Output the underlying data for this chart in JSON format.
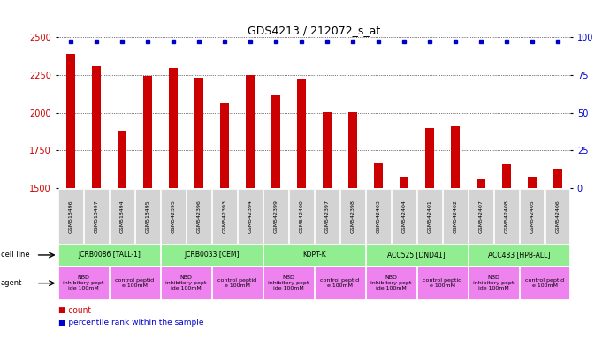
{
  "title": "GDS4213 / 212072_s_at",
  "samples": [
    "GSM518496",
    "GSM518497",
    "GSM518494",
    "GSM518495",
    "GSM542395",
    "GSM542396",
    "GSM542393",
    "GSM542394",
    "GSM542399",
    "GSM542400",
    "GSM542397",
    "GSM542398",
    "GSM542403",
    "GSM542404",
    "GSM542401",
    "GSM542402",
    "GSM542407",
    "GSM542408",
    "GSM542405",
    "GSM542406"
  ],
  "counts": [
    2390,
    2310,
    1880,
    2245,
    2295,
    2235,
    2065,
    2250,
    2115,
    2225,
    2005,
    2005,
    1665,
    1570,
    1900,
    1910,
    1560,
    1660,
    1575,
    1625
  ],
  "percentiles": [
    97,
    97,
    97,
    97,
    97,
    97,
    97,
    97,
    97,
    97,
    97,
    97,
    97,
    97,
    97,
    97,
    97,
    97,
    97,
    97
  ],
  "ylim_left": [
    1500,
    2500
  ],
  "ylim_right": [
    0,
    100
  ],
  "yticks_left": [
    1500,
    1750,
    2000,
    2250,
    2500
  ],
  "yticks_right": [
    0,
    25,
    50,
    75,
    100
  ],
  "bar_color": "#cc0000",
  "dot_color": "#0000cc",
  "cell_lines": [
    {
      "label": "JCRB0086 [TALL-1]",
      "start": 0,
      "end": 4,
      "color": "#90ee90"
    },
    {
      "label": "JCRB0033 [CEM]",
      "start": 4,
      "end": 8,
      "color": "#90ee90"
    },
    {
      "label": "KOPT-K",
      "start": 8,
      "end": 12,
      "color": "#90ee90"
    },
    {
      "label": "ACC525 [DND41]",
      "start": 12,
      "end": 16,
      "color": "#90ee90"
    },
    {
      "label": "ACC483 [HPB-ALL]",
      "start": 16,
      "end": 20,
      "color": "#90ee90"
    }
  ],
  "agents": [
    {
      "label": "NBD\ninhibitory pept\nide 100mM",
      "start": 0,
      "end": 2,
      "color": "#ee82ee"
    },
    {
      "label": "control peptid\ne 100mM",
      "start": 2,
      "end": 4,
      "color": "#ee82ee"
    },
    {
      "label": "NBD\ninhibitory pept\nide 100mM",
      "start": 4,
      "end": 6,
      "color": "#ee82ee"
    },
    {
      "label": "control peptid\ne 100mM",
      "start": 6,
      "end": 8,
      "color": "#ee82ee"
    },
    {
      "label": "NBD\ninhibitory pept\nide 100mM",
      "start": 8,
      "end": 10,
      "color": "#ee82ee"
    },
    {
      "label": "control peptid\ne 100mM",
      "start": 10,
      "end": 12,
      "color": "#ee82ee"
    },
    {
      "label": "NBD\ninhibitory pept\nide 100mM",
      "start": 12,
      "end": 14,
      "color": "#ee82ee"
    },
    {
      "label": "control peptid\ne 100mM",
      "start": 14,
      "end": 16,
      "color": "#ee82ee"
    },
    {
      "label": "NBD\ninhibitory pept\nide 100mM",
      "start": 16,
      "end": 18,
      "color": "#ee82ee"
    },
    {
      "label": "control peptid\ne 100mM",
      "start": 18,
      "end": 20,
      "color": "#ee82ee"
    }
  ],
  "legend_count_color": "#cc0000",
  "legend_pct_color": "#0000cc",
  "plot_bg": "#ffffff",
  "fig_bg": "#ffffff",
  "grid_color": "#000000",
  "xticklabel_bg": "#d3d3d3"
}
